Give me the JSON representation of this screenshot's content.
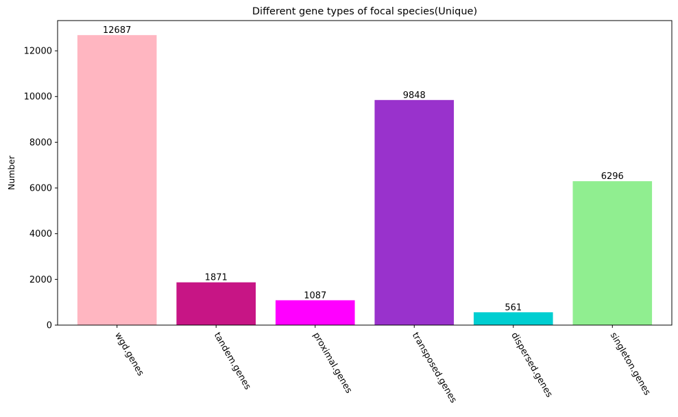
{
  "chart_data": {
    "type": "bar",
    "title": "Different gene types of focal species(Unique)",
    "xlabel": "",
    "ylabel": "Number",
    "categories": [
      "wgd.genes",
      "tandem.genes",
      "proximal.genes",
      "transposed.genes",
      "dispersed.genes",
      "singleton.genes"
    ],
    "values": [
      12687,
      1871,
      1087,
      9848,
      561,
      6296
    ],
    "colors": [
      "#ffb6c1",
      "#c71585",
      "#ff00ff",
      "#9932cc",
      "#00ced1",
      "#90ee90"
    ],
    "ylim": [
      0,
      13323
    ],
    "yticks": [
      0,
      2000,
      4000,
      6000,
      8000,
      10000,
      12000
    ],
    "x_tick_rotation": -60,
    "grid": false,
    "legend": "none"
  }
}
